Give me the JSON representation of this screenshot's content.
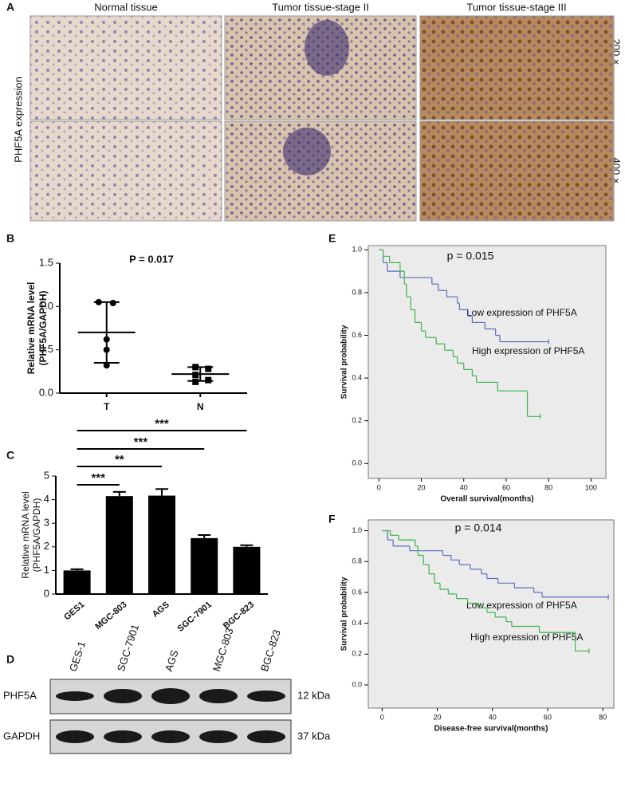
{
  "panel_a": {
    "label": "A",
    "columns": [
      "Normal tissue",
      "Tumor tissue-stage II",
      "Tumor tissue-stage III"
    ],
    "row_title": "PHF5A expression",
    "magnifications": [
      "200 ×",
      "400 ×"
    ]
  },
  "chart_data": [
    {
      "label": "B",
      "type": "dot",
      "title": "P = 0.017",
      "ylabel": [
        "Relative mRNA level",
        "(PHF5A/GAPDH)"
      ],
      "categories": [
        "T",
        "N"
      ],
      "points": [
        [
          1.05,
          1.04,
          0.62,
          0.5,
          0.32
        ],
        [
          0.3,
          0.28,
          0.21,
          0.15,
          0.13
        ]
      ],
      "means": [
        0.7,
        0.22
      ],
      "errors": [
        0.35,
        0.08
      ],
      "color": "#000000",
      "ylim": [
        0,
        1.5
      ],
      "yticks": [
        {
          "value": 0,
          "label": "0.0"
        },
        0.5,
        {
          "value": 1,
          "label": "1.0"
        },
        1.5
      ]
    },
    {
      "label": "C",
      "type": "bar",
      "ylabel": [
        "Relative mRNA level",
        "(PHF5A/GAPDH)"
      ],
      "categories": [
        "GES1",
        "MGC-803",
        "AGS",
        "SGC-7901",
        "BGC-823"
      ],
      "values": [
        1,
        4.15,
        4.17,
        2.37,
        2
      ],
      "errors": [
        0.05,
        0.18,
        0.28,
        0.13,
        0.07
      ],
      "color": "#000000",
      "ylim": [
        0,
        5
      ],
      "yticks": [
        0,
        1,
        2,
        3,
        4,
        5
      ],
      "comparisons": [
        {
          "from": 0,
          "to": 1,
          "label": "***"
        },
        {
          "from": 0,
          "to": 2,
          "label": "**"
        },
        {
          "from": 0,
          "to": 3,
          "label": "***"
        },
        {
          "from": 0,
          "to": 4,
          "label": "***"
        }
      ]
    },
    {
      "label": "E",
      "type": "survival",
      "annotation": "p = 0.015",
      "xlabel": "Overall survival(months)",
      "ylabel": "Survival probability",
      "xlim": [
        -5,
        107
      ],
      "xticks": [
        0,
        20,
        40,
        60,
        80,
        100
      ],
      "ylim": [
        -0.07,
        1.02
      ],
      "yticks": [
        {
          "value": 0,
          "label": "0.0"
        },
        0.2,
        0.4,
        0.6,
        0.8,
        {
          "value": 1,
          "label": "1.0"
        }
      ],
      "series": [
        {
          "name": "Low expression of PHF5A",
          "color": "#5a6cc0",
          "x": [
            0,
            2,
            4,
            10,
            25,
            28,
            32,
            37,
            38,
            42,
            44,
            50,
            55,
            57,
            80
          ],
          "values": [
            1,
            0.94,
            0.9,
            0.87,
            0.84,
            0.81,
            0.78,
            0.75,
            0.72,
            0.69,
            0.66,
            0.63,
            0.6,
            0.57,
            0.57
          ]
        },
        {
          "name": "High expression of PHF5A",
          "color": "#3db54a",
          "x": [
            0,
            2,
            5,
            10,
            12,
            13,
            15,
            17,
            20,
            22,
            27,
            31,
            35,
            37,
            40,
            44,
            46,
            56,
            70,
            76
          ],
          "values": [
            1,
            0.97,
            0.94,
            0.9,
            0.84,
            0.78,
            0.72,
            0.66,
            0.62,
            0.59,
            0.56,
            0.53,
            0.5,
            0.47,
            0.44,
            0.41,
            0.38,
            0.34,
            0.22,
            0.22
          ]
        }
      ]
    },
    {
      "label": "F",
      "type": "survival",
      "annotation": "p = 0.014",
      "xlabel": "Disease-free survival(months)",
      "ylabel": "Survival probability",
      "xlim": [
        -5,
        84
      ],
      "xticks": [
        0,
        20,
        40,
        60,
        80
      ],
      "ylim": [
        -0.15,
        1.07
      ],
      "yticks": [
        {
          "value": 0,
          "label": "0.0"
        },
        0.2,
        0.4,
        0.6,
        0.8,
        {
          "value": 1,
          "label": "1.0"
        }
      ],
      "series": [
        {
          "name": "Low expression of PHF5A",
          "color": "#5a6cc0",
          "x": [
            0,
            2,
            4,
            10,
            22,
            25,
            28,
            32,
            36,
            38,
            42,
            48,
            55,
            58,
            82
          ],
          "values": [
            1,
            0.94,
            0.9,
            0.87,
            0.84,
            0.81,
            0.78,
            0.75,
            0.72,
            0.69,
            0.66,
            0.63,
            0.6,
            0.57,
            0.57
          ]
        },
        {
          "name": "High expression of PHF5A",
          "color": "#3db54a",
          "x": [
            0,
            3,
            6,
            12,
            13,
            15,
            17,
            19,
            21,
            24,
            27,
            31,
            35,
            38,
            41,
            45,
            47,
            57,
            70,
            75
          ],
          "values": [
            1,
            0.97,
            0.94,
            0.9,
            0.84,
            0.78,
            0.72,
            0.66,
            0.62,
            0.59,
            0.56,
            0.53,
            0.5,
            0.47,
            0.44,
            0.41,
            0.38,
            0.34,
            0.22,
            0.22
          ]
        }
      ]
    }
  ],
  "panel_d": {
    "label": "D",
    "lanes": [
      "GES-1",
      "SGC-7901",
      "AGS",
      "MGC-803",
      "BGC-823"
    ],
    "rows": [
      {
        "name": "PHF5A",
        "size": "12 kDa"
      },
      {
        "name": "GAPDH",
        "size": "37 kDa"
      }
    ]
  }
}
